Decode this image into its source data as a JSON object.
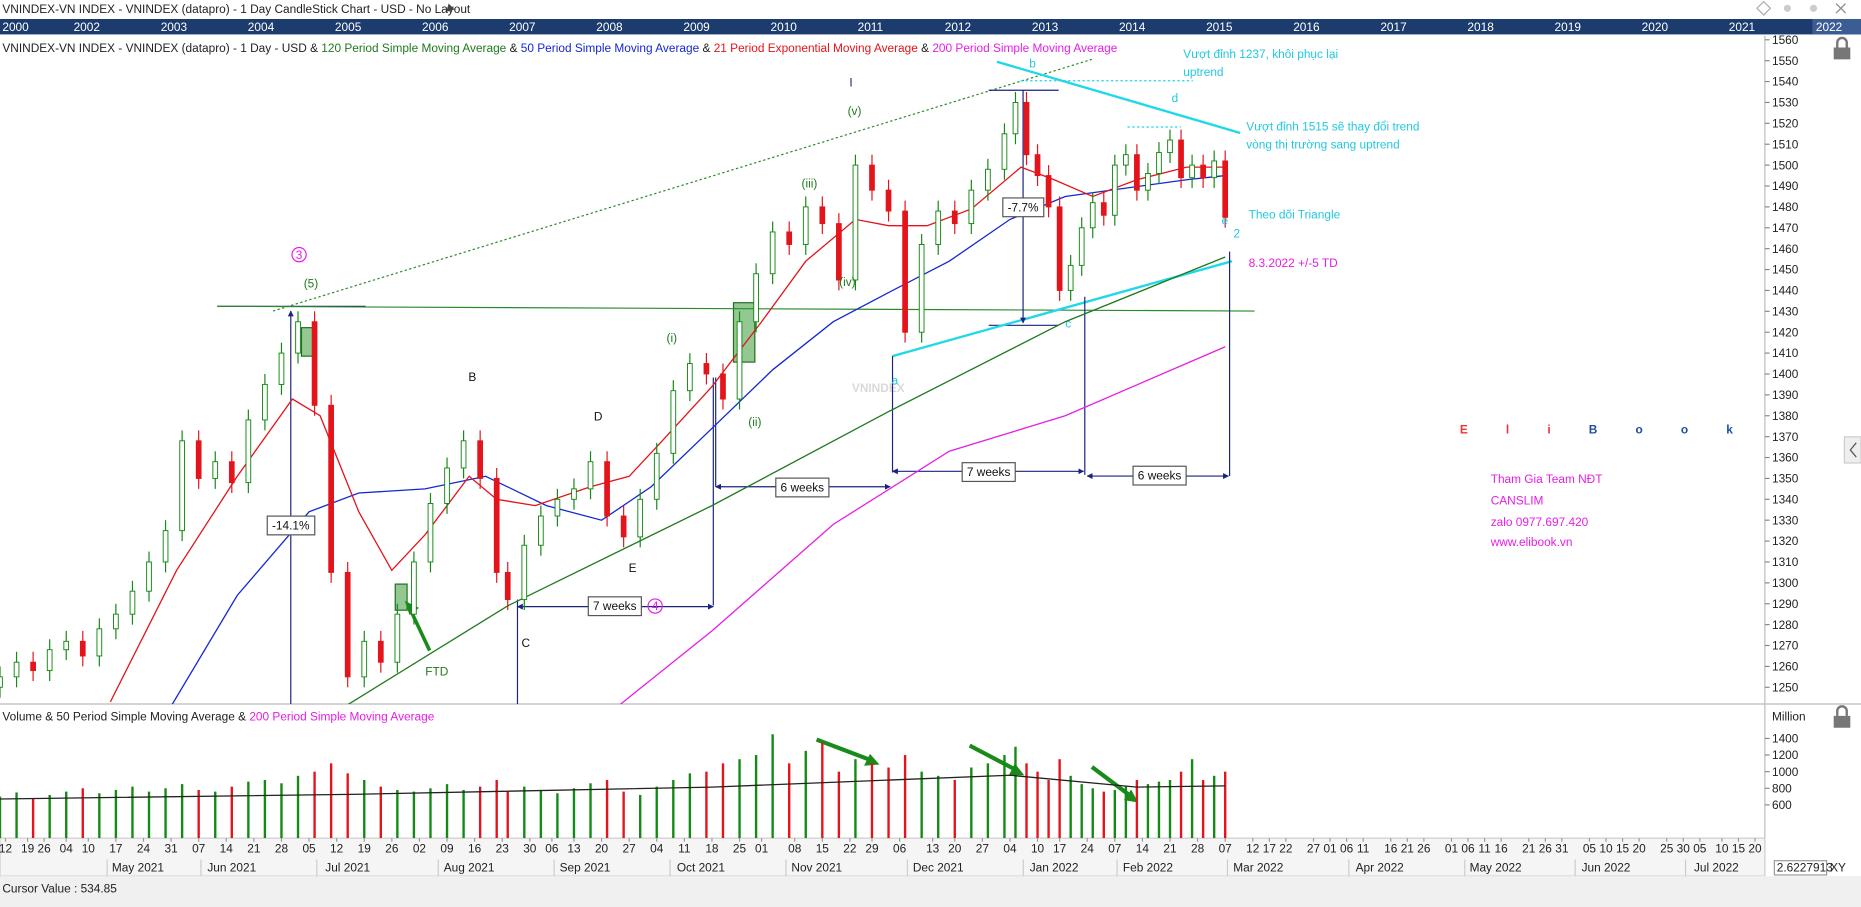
{
  "window_title": "VNINDEX-VN INDEX - VNINDEX (datapro) - 1 Day CandleStick Chart - USD - No Layout",
  "year_strip": [
    "2000",
    "2002",
    "2003",
    "2004",
    "2005",
    "2006",
    "2007",
    "2008",
    "2009",
    "2010",
    "2011",
    "2012",
    "2013",
    "2014",
    "2015",
    "2016",
    "2017",
    "2018",
    "2019",
    "2020",
    "2021",
    "2022"
  ],
  "ui": {
    "volume_unit": "Million",
    "scale_box": "2.6227913",
    "scale_mode": "XY",
    "cursor_value": "Cursor Value : 534.85"
  },
  "logo": {
    "part1": "Eli",
    "part2": "Book"
  },
  "annotations": [
    "I",
    "(v)",
    "(iii)",
    "(iv)",
    "(i)",
    "(ii)",
    "(5)",
    "3",
    "B",
    "D",
    "E",
    "C",
    "FTD",
    "-14.1%",
    "7 weeks",
    "4",
    "6 weeks",
    "7 weeks",
    "6 weeks",
    "-7.7%",
    "b",
    "d",
    "e",
    "2",
    "a",
    "c",
    "Vượt đỉnh 1237, khôi phục lại",
    "uptrend",
    "Vượt đỉnh 1515 sẽ thay đổi trend",
    "vòng thị trường sang uptrend",
    "Theo dõi  Triangle",
    "8.3.2022  +/-5 TD",
    "Tham Gia Team NĐT",
    "CANSLIM",
    "zalo 0977.697.420",
    "www.elibook.vn"
  ],
  "chart_data": [
    {
      "type": "candlestick",
      "legend": {
        "prefix": "VNINDEX-VN INDEX - VNINDEX (datapro) - 1 Day - USD",
        "separator": " & "
      },
      "watermark": "VNINDEX",
      "up_color": "#138a13",
      "down_color": "#e3141b",
      "x": [
        0,
        3,
        6,
        9,
        12,
        15,
        18,
        21,
        24,
        27,
        30,
        33,
        36,
        39,
        42,
        45,
        48,
        51,
        54,
        57,
        60,
        63,
        66,
        69,
        72,
        75,
        78,
        81,
        84,
        87,
        90,
        92,
        95,
        98,
        101,
        104,
        107,
        110,
        113,
        116,
        119,
        122,
        125,
        128,
        131,
        134,
        137,
        140,
        143,
        146,
        149,
        152,
        155,
        158,
        161,
        164,
        167,
        170,
        173,
        176,
        179,
        182,
        184,
        186,
        188,
        190,
        192,
        194,
        196,
        198,
        200,
        202,
        204,
        206,
        208,
        210,
        212,
        214,
        216,
        218,
        220,
        222
      ],
      "open": [
        1250,
        1255,
        1262,
        1258,
        1268,
        1272,
        1265,
        1278,
        1285,
        1296,
        1310,
        1325,
        1368,
        1350,
        1358,
        1348,
        1378,
        1395,
        1410,
        1425,
        1385,
        1305,
        1255,
        1272,
        1262,
        1285,
        1310,
        1338,
        1355,
        1368,
        1350,
        1305,
        1292,
        1318,
        1332,
        1340,
        1345,
        1358,
        1332,
        1322,
        1340,
        1362,
        1392,
        1405,
        1400,
        1388,
        1425,
        1448,
        1468,
        1462,
        1480,
        1472,
        1445,
        1500,
        1488,
        1478,
        1420,
        1462,
        1478,
        1472,
        1488,
        1498,
        1515,
        1530,
        1505,
        1495,
        1480,
        1440,
        1452,
        1470,
        1482,
        1476,
        1500,
        1505,
        1488,
        1496,
        1506,
        1512,
        1494,
        1500,
        1494,
        1502
      ],
      "high": [
        1260,
        1267,
        1267,
        1273,
        1277,
        1277,
        1283,
        1290,
        1301,
        1315,
        1330,
        1373,
        1373,
        1363,
        1363,
        1383,
        1400,
        1415,
        1430,
        1430,
        1390,
        1310,
        1277,
        1277,
        1290,
        1315,
        1343,
        1360,
        1373,
        1373,
        1355,
        1310,
        1323,
        1337,
        1345,
        1350,
        1363,
        1363,
        1337,
        1345,
        1367,
        1397,
        1410,
        1410,
        1405,
        1430,
        1453,
        1473,
        1473,
        1485,
        1485,
        1477,
        1505,
        1505,
        1493,
        1483,
        1467,
        1483,
        1483,
        1493,
        1503,
        1520,
        1535,
        1535,
        1510,
        1500,
        1485,
        1457,
        1475,
        1487,
        1487,
        1505,
        1510,
        1510,
        1501,
        1511,
        1517,
        1517,
        1505,
        1505,
        1507,
        1507
      ],
      "low": [
        1245,
        1250,
        1253,
        1253,
        1263,
        1260,
        1260,
        1273,
        1280,
        1291,
        1305,
        1320,
        1345,
        1345,
        1343,
        1343,
        1373,
        1390,
        1405,
        1380,
        1300,
        1250,
        1250,
        1257,
        1257,
        1280,
        1305,
        1333,
        1350,
        1345,
        1300,
        1287,
        1287,
        1313,
        1327,
        1335,
        1340,
        1327,
        1317,
        1317,
        1335,
        1357,
        1387,
        1395,
        1383,
        1383,
        1420,
        1443,
        1457,
        1457,
        1467,
        1440,
        1440,
        1483,
        1473,
        1415,
        1415,
        1457,
        1467,
        1467,
        1483,
        1493,
        1510,
        1500,
        1490,
        1475,
        1435,
        1435,
        1447,
        1465,
        1471,
        1471,
        1495,
        1483,
        1483,
        1491,
        1501,
        1489,
        1489,
        1489,
        1489,
        1470
      ],
      "close": [
        1255,
        1262,
        1258,
        1268,
        1272,
        1265,
        1278,
        1285,
        1296,
        1310,
        1325,
        1368,
        1350,
        1358,
        1348,
        1378,
        1395,
        1410,
        1425,
        1385,
        1305,
        1255,
        1272,
        1262,
        1285,
        1310,
        1338,
        1355,
        1368,
        1350,
        1305,
        1292,
        1318,
        1332,
        1340,
        1345,
        1358,
        1332,
        1322,
        1340,
        1362,
        1392,
        1405,
        1400,
        1388,
        1425,
        1448,
        1468,
        1462,
        1480,
        1472,
        1445,
        1500,
        1488,
        1478,
        1420,
        1462,
        1478,
        1472,
        1488,
        1498,
        1515,
        1530,
        1505,
        1495,
        1480,
        1440,
        1452,
        1470,
        1482,
        1476,
        1500,
        1505,
        1488,
        1496,
        1506,
        1512,
        1494,
        1500,
        1494,
        1502,
        1475
      ],
      "xlim": [
        0,
        320
      ],
      "ylim": [
        1242,
        1562
      ],
      "yticks": [
        1250,
        1260,
        1270,
        1280,
        1290,
        1300,
        1310,
        1320,
        1330,
        1340,
        1350,
        1360,
        1370,
        1380,
        1390,
        1400,
        1410,
        1420,
        1430,
        1440,
        1450,
        1460,
        1470,
        1480,
        1490,
        1500,
        1510,
        1520,
        1530,
        1540,
        1550,
        1560
      ],
      "indicators": [
        {
          "name": "120 Period Simple Moving Average",
          "color": "#1f7a1f",
          "x": [
            62,
            92,
            129,
            161,
            193,
            222
          ],
          "values": [
            1240,
            1289,
            1337,
            1382,
            1425,
            1456
          ]
        },
        {
          "name": "50 Period Simple Moving Average",
          "color": "#1428d2",
          "x": [
            31,
            43,
            56,
            65,
            77,
            88,
            99,
            109,
            118,
            129,
            140,
            151,
            161,
            172,
            183,
            193,
            215,
            222
          ],
          "values": [
            1241,
            1294,
            1334,
            1343,
            1345,
            1351,
            1337,
            1330,
            1346,
            1374,
            1402,
            1425,
            1439,
            1454,
            1474,
            1485,
            1493,
            1495
          ]
        },
        {
          "name": "21 Period Exponential Moving Average",
          "color": "#e3141b",
          "x": [
            20,
            32,
            43,
            53,
            58,
            65,
            71,
            77,
            85,
            90,
            97,
            107,
            114,
            120,
            129,
            138,
            146,
            155,
            161,
            168,
            176,
            185,
            191,
            198,
            206,
            215,
            222
          ],
          "values": [
            1243,
            1306,
            1351,
            1388,
            1380,
            1334,
            1306,
            1323,
            1351,
            1340,
            1337,
            1346,
            1351,
            1368,
            1394,
            1425,
            1454,
            1474,
            1471,
            1471,
            1479,
            1499,
            1493,
            1485,
            1493,
            1499,
            1499
          ]
        },
        {
          "name": "200 Period Simple Moving Average",
          "color": "#e61ee6",
          "x": [
            112,
            129,
            151,
            172,
            193,
            222
          ],
          "values": [
            1241,
            1277,
            1328,
            1363,
            1380,
            1413
          ]
        }
      ]
    },
    {
      "type": "bar",
      "name": "Volume",
      "x": [
        0,
        3,
        6,
        9,
        12,
        15,
        18,
        21,
        24,
        27,
        30,
        33,
        36,
        39,
        42,
        45,
        48,
        51,
        54,
        57,
        60,
        63,
        66,
        69,
        72,
        75,
        78,
        81,
        84,
        87,
        90,
        92,
        95,
        98,
        101,
        104,
        107,
        110,
        113,
        116,
        119,
        122,
        125,
        128,
        131,
        134,
        137,
        140,
        143,
        146,
        149,
        152,
        155,
        158,
        161,
        164,
        167,
        170,
        173,
        176,
        179,
        182,
        184,
        186,
        188,
        190,
        192,
        194,
        196,
        198,
        200,
        202,
        204,
        206,
        208,
        210,
        212,
        214,
        216,
        218,
        220,
        222
      ],
      "values": [
        700,
        750,
        680,
        720,
        760,
        800,
        740,
        780,
        820,
        760,
        800,
        850,
        780,
        760,
        820,
        880,
        900,
        860,
        950,
        1000,
        1100,
        980,
        900,
        820,
        780,
        760,
        800,
        850,
        780,
        820,
        900,
        760,
        820,
        780,
        740,
        800,
        860,
        900,
        760,
        720,
        820,
        900,
        980,
        1000,
        1100,
        1150,
        1200,
        1450,
        1100,
        1250,
        1350,
        1000,
        1150,
        1100,
        1050,
        1200,
        1000,
        950,
        900,
        1050,
        1100,
        1200,
        1300,
        1100,
        1000,
        900,
        1150,
        950,
        850,
        800,
        760,
        780,
        820,
        900,
        850,
        880,
        900,
        1000,
        1150,
        900,
        950,
        1000
      ],
      "xlim": [
        0,
        320
      ],
      "ylim": [
        200,
        1800
      ],
      "yticks": [
        600,
        800,
        1000,
        1200,
        1400
      ],
      "indicators": [
        {
          "name": "50 Period Simple Moving Average",
          "color": "#222222",
          "x": [
            0,
            65,
            129,
            183,
            206,
            222
          ],
          "values": [
            671,
            728,
            814,
            957,
            814,
            828
          ]
        },
        {
          "name": "200 Period Simple Moving Average",
          "color": "#e61ee6"
        }
      ],
      "xticks": [
        {
          "value": 1,
          "label": "12"
        },
        {
          "value": 5,
          "label": "19"
        },
        {
          "value": 8,
          "label": "26"
        },
        {
          "value": 12,
          "label": "04"
        },
        {
          "value": 16,
          "label": "10"
        },
        {
          "value": 21,
          "label": "17"
        },
        {
          "value": 26,
          "label": "24"
        },
        {
          "value": 31,
          "label": "31"
        },
        {
          "value": 36,
          "label": "07"
        },
        {
          "value": 41,
          "label": "14"
        },
        {
          "value": 46,
          "label": "21"
        },
        {
          "value": 51,
          "label": "28"
        },
        {
          "value": 56,
          "label": "05"
        },
        {
          "value": 61,
          "label": "12"
        },
        {
          "value": 66,
          "label": "19"
        },
        {
          "value": 71,
          "label": "26"
        },
        {
          "value": 76,
          "label": "02"
        },
        {
          "value": 81,
          "label": "09"
        },
        {
          "value": 86,
          "label": "16"
        },
        {
          "value": 91,
          "label": "23"
        },
        {
          "value": 96,
          "label": "30"
        },
        {
          "value": 100,
          "label": "06"
        },
        {
          "value": 104,
          "label": "13"
        },
        {
          "value": 109,
          "label": "20"
        },
        {
          "value": 114,
          "label": "27"
        },
        {
          "value": 119,
          "label": "04"
        },
        {
          "value": 124,
          "label": "11"
        },
        {
          "value": 129,
          "label": "18"
        },
        {
          "value": 134,
          "label": "25"
        },
        {
          "value": 138,
          "label": "01"
        },
        {
          "value": 144,
          "label": "08"
        },
        {
          "value": 149,
          "label": "15"
        },
        {
          "value": 154,
          "label": "22"
        },
        {
          "value": 158,
          "label": "29"
        },
        {
          "value": 163,
          "label": "06"
        },
        {
          "value": 169,
          "label": "13"
        },
        {
          "value": 173,
          "label": "20"
        },
        {
          "value": 178,
          "label": "27"
        },
        {
          "value": 183,
          "label": "04"
        },
        {
          "value": 188,
          "label": "10"
        },
        {
          "value": 192,
          "label": "17"
        },
        {
          "value": 197,
          "label": "24"
        },
        {
          "value": 202,
          "label": "07"
        },
        {
          "value": 207,
          "label": "14"
        },
        {
          "value": 212,
          "label": "21"
        },
        {
          "value": 217,
          "label": "28"
        },
        {
          "value": 222,
          "label": "07"
        },
        {
          "value": 227,
          "label": "12"
        },
        {
          "value": 230,
          "label": "17"
        },
        {
          "value": 233,
          "label": "22"
        },
        {
          "value": 238,
          "label": "27"
        },
        {
          "value": 241,
          "label": "01"
        },
        {
          "value": 244,
          "label": "06"
        },
        {
          "value": 247,
          "label": "11"
        },
        {
          "value": 252,
          "label": "16"
        },
        {
          "value": 255,
          "label": "21"
        },
        {
          "value": 258,
          "label": "26"
        },
        {
          "value": 263,
          "label": "01"
        },
        {
          "value": 266,
          "label": "06"
        },
        {
          "value": 269,
          "label": "11"
        },
        {
          "value": 272,
          "label": "16"
        },
        {
          "value": 277,
          "label": "21"
        },
        {
          "value": 280,
          "label": "26"
        },
        {
          "value": 283,
          "label": "31"
        },
        {
          "value": 288,
          "label": "05"
        },
        {
          "value": 291,
          "label": "10"
        },
        {
          "value": 294,
          "label": "15"
        },
        {
          "value": 297,
          "label": "20"
        },
        {
          "value": 302,
          "label": "25"
        },
        {
          "value": 305,
          "label": "30"
        },
        {
          "value": 308,
          "label": "05"
        },
        {
          "value": 312,
          "label": "10"
        },
        {
          "value": 315,
          "label": "15"
        },
        {
          "value": 318,
          "label": "20"
        }
      ],
      "month_labels": [
        {
          "value": 25,
          "label": "May 2021"
        },
        {
          "value": 42,
          "label": "Jun 2021"
        },
        {
          "value": 63,
          "label": "Jul 2021"
        },
        {
          "value": 85,
          "label": "Aug 2021"
        },
        {
          "value": 106,
          "label": "Sep 2021"
        },
        {
          "value": 127,
          "label": "Oct 2021"
        },
        {
          "value": 148,
          "label": "Nov 2021"
        },
        {
          "value": 170,
          "label": "Dec 2021"
        },
        {
          "value": 191,
          "label": "Jan 2022"
        },
        {
          "value": 208,
          "label": "Feb 2022"
        },
        {
          "value": 228,
          "label": "Mar 2022"
        },
        {
          "value": 250,
          "label": "Apr 2022"
        },
        {
          "value": 271,
          "label": "May 2022"
        },
        {
          "value": 291,
          "label": "Jun 2022"
        },
        {
          "value": 311,
          "label": "Jul 2022"
        }
      ]
    }
  ]
}
